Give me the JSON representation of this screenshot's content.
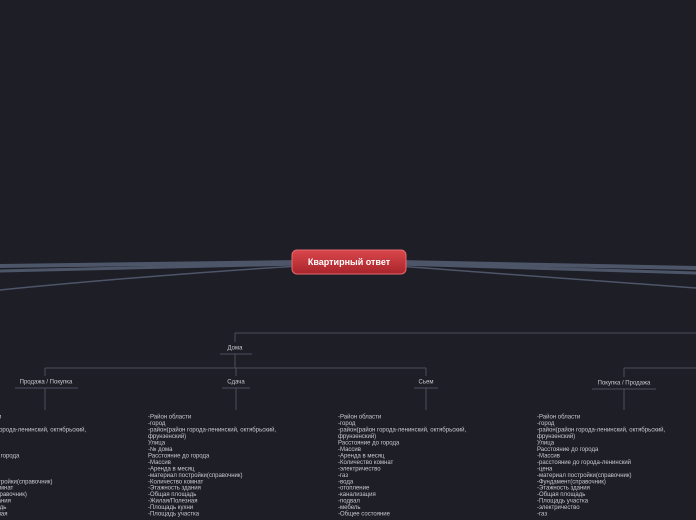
{
  "central": {
    "label": "Квартирный ответ"
  },
  "branches": [
    {
      "label": "Дома",
      "children": [
        {
          "label": "Продажа / Покупка",
          "items": [
            "-Район области",
            "-район(район города-ленинский, октябрьский,",
            "Расстояние до города",
            "-материал постройки(справочник)",
            "-Количество комнат",
            "-Фундамент(справочник)",
            "-Этажность здания",
            "-Общая площадь",
            "-Жилая/Полезная"
          ]
        },
        {
          "label": "Сдача",
          "items": [
            "-Район области",
            "-город",
            "-район(район города-ленинский, октябрьский,",
            "фрунзенский)",
            "Улица",
            "-№ дома",
            "Расстояние до города",
            "-Массив",
            "-Аренда в месяц",
            "-материал постройки(справочник)",
            "-Количество комнат",
            "-Этажность здания",
            "-Общая площадь",
            "-Жилая/Полезная",
            "-Площадь кухни",
            "-Площадь участка"
          ]
        },
        {
          "label": "Сьем",
          "items": [
            "-Район области",
            "-город",
            "-район(район города-ленинский, октябрьский,",
            "фрунзенский)",
            "Расстояние до города",
            "-Массив",
            "-Аренда в месяц",
            "-Количество комнат",
            "-электричество",
            "-газ",
            "-вода",
            "-отопление",
            "-канализация",
            "-подвал",
            "-мебель",
            "-Общее состояние"
          ]
        }
      ]
    },
    {
      "label": "Покупка / Продажа",
      "items": [
        "-Район области",
        "-город",
        "-район(район города-ленинский, октябрьский,",
        "фрунзенский)",
        "Улица",
        "Расстояние до города",
        "-Массив",
        "-расстояние до города-ленинский",
        "-цена",
        "-материал постройки(справочник)",
        "-Фундамент(справочник)",
        "-Этажность здания",
        "-Общая площадь",
        "-Площадь участка",
        "-электричество",
        "-газ"
      ]
    }
  ]
}
